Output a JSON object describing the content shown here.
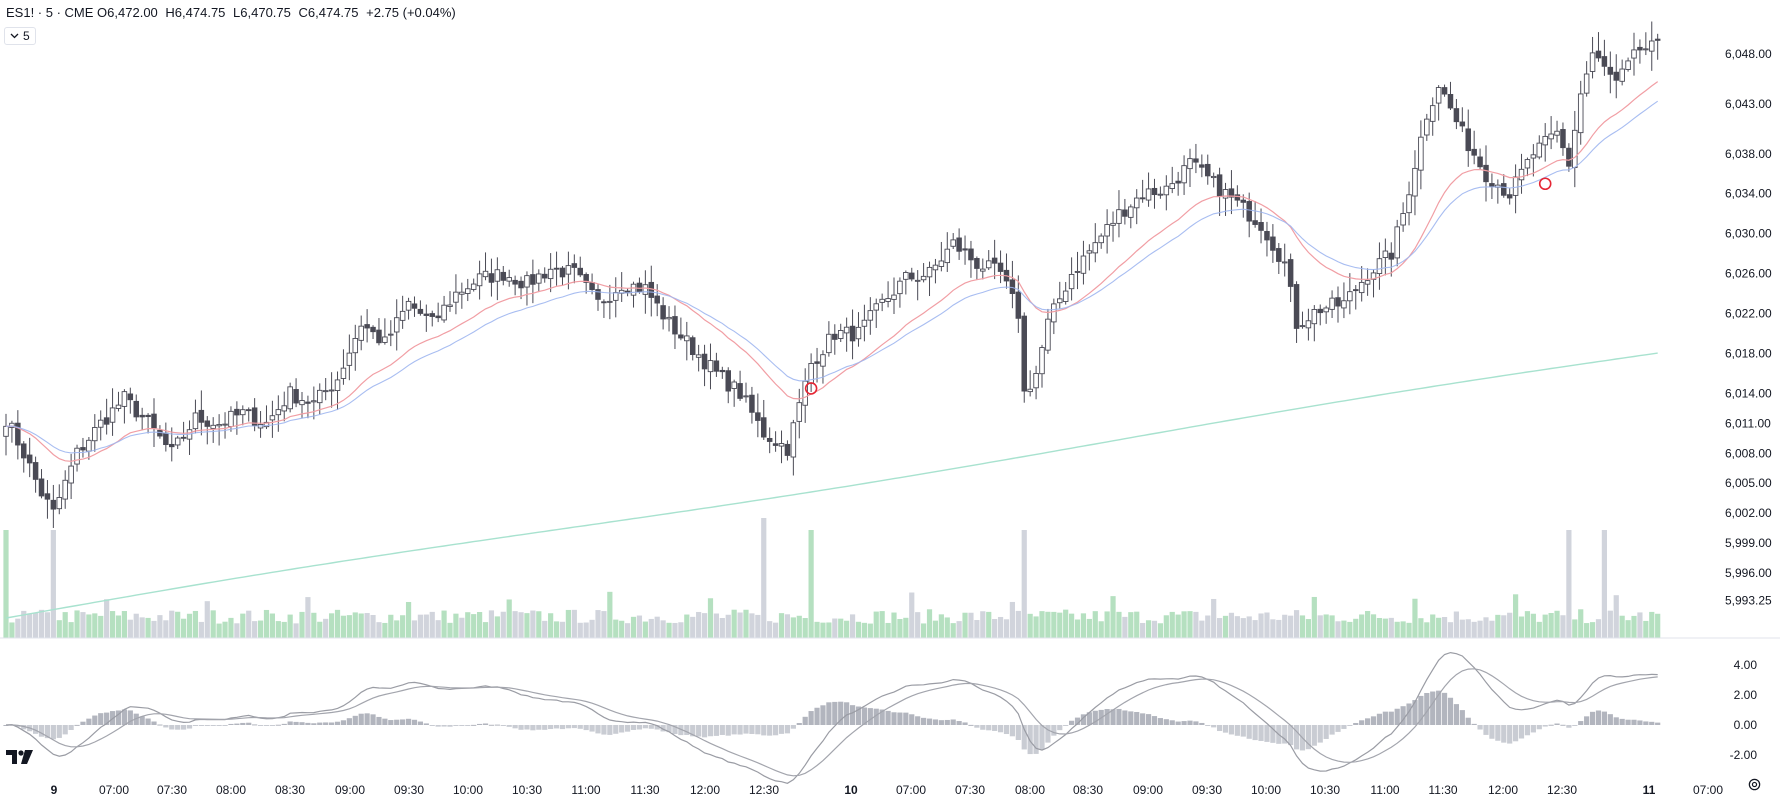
{
  "legend": {
    "symbol": "ES1! · 5 · CME",
    "o_label": "O",
    "o_value": "6,472.00",
    "h_label": "H",
    "h_value": "6,474.75",
    "l_label": "L",
    "l_value": "6,470.75",
    "c_label": "C",
    "c_value": "6,474.75",
    "change": "+2.75 (+0.04%)"
  },
  "interval_button": {
    "label": "5",
    "icon": "chevron-down-icon"
  },
  "colors": {
    "up_body": "#ffffff",
    "up_border": "#4a4a55",
    "down_body": "#4a4a55",
    "wick": "#4a4a55",
    "volume_up": "#b5e0c0",
    "volume_down": "#d1d4dc",
    "ema_red": "#f19ea4",
    "ema_blue": "#9fb6f0",
    "sma_long": "#a8e2cf",
    "signal_circle": "#e52634",
    "macd_line": "#9a9ca4",
    "macd_signal": "#a3a5ad"
  },
  "chart_data": {
    "type": "candlestick",
    "price_axis_labels": [
      "6,048.00",
      "6,043.00",
      "6,038.00",
      "6,034.00",
      "6,030.00",
      "6,026.00",
      "6,022.00",
      "6,018.00",
      "6,014.00",
      "6,011.00",
      "6,008.00",
      "6,005.00",
      "6,002.00",
      "5,999.00",
      "5,996.00",
      "5,993.25"
    ],
    "price_range": [
      5991.5,
      6050.0
    ],
    "time_axis_labels": [
      "9",
      "07:00",
      "07:30",
      "08:00",
      "08:30",
      "09:00",
      "09:30",
      "10:00",
      "10:30",
      "11:00",
      "11:30",
      "12:00",
      "12:30",
      "10",
      "07:00",
      "07:30",
      "08:00",
      "08:30",
      "09:00",
      "09:30",
      "10:00",
      "10:30",
      "11:00",
      "11:30",
      "12:00",
      "12:30",
      "11",
      "07:00"
    ],
    "macd_axis_labels": [
      "4.00",
      "2.00",
      "0.00",
      "-2.00"
    ],
    "macd_range": [
      -3.0,
      5.0
    ],
    "close_keypoints": [
      [
        0,
        6011.5
      ],
      [
        3,
        6008.0
      ],
      [
        6,
        6004.0
      ],
      [
        8,
        6002.0
      ],
      [
        12,
        6008.0
      ],
      [
        16,
        6011.0
      ],
      [
        20,
        6013.5
      ],
      [
        24,
        6011.0
      ],
      [
        28,
        6008.0
      ],
      [
        32,
        6011.5
      ],
      [
        36,
        6011.0
      ],
      [
        40,
        6012.0
      ],
      [
        44,
        6011.0
      ],
      [
        48,
        6014.0
      ],
      [
        52,
        6013.0
      ],
      [
        56,
        6015.5
      ],
      [
        60,
        6021.0
      ],
      [
        64,
        6019.0
      ],
      [
        68,
        6023.0
      ],
      [
        72,
        6021.0
      ],
      [
        76,
        6024.0
      ],
      [
        80,
        6025.5
      ],
      [
        84,
        6026.0
      ],
      [
        88,
        6025.0
      ],
      [
        92,
        6026.5
      ],
      [
        96,
        6026.0
      ],
      [
        100,
        6023.0
      ],
      [
        104,
        6025.0
      ],
      [
        108,
        6024.5
      ],
      [
        112,
        6021.0
      ],
      [
        116,
        6018.5
      ],
      [
        120,
        6016.0
      ],
      [
        124,
        6014.0
      ],
      [
        128,
        6010.0
      ],
      [
        132,
        6008.5
      ],
      [
        136,
        6017.0
      ],
      [
        140,
        6020.0
      ],
      [
        144,
        6020.0
      ],
      [
        148,
        6023.0
      ],
      [
        152,
        6025.5
      ],
      [
        156,
        6026.0
      ],
      [
        160,
        6029.0
      ],
      [
        164,
        6027.0
      ],
      [
        168,
        6026.0
      ],
      [
        171,
        6022.0
      ],
      [
        172,
        6014.0
      ],
      [
        174,
        6016.0
      ],
      [
        176,
        6021.0
      ],
      [
        180,
        6026.0
      ],
      [
        184,
        6029.0
      ],
      [
        188,
        6032.0
      ],
      [
        192,
        6034.0
      ],
      [
        196,
        6034.5
      ],
      [
        200,
        6037.0
      ],
      [
        204,
        6035.0
      ],
      [
        208,
        6033.0
      ],
      [
        212,
        6031.0
      ],
      [
        216,
        6027.0
      ],
      [
        218,
        6021.0
      ],
      [
        222,
        6022.5
      ],
      [
        226,
        6023.0
      ],
      [
        230,
        6026.0
      ],
      [
        234,
        6028.0
      ],
      [
        236,
        6032.0
      ],
      [
        240,
        6042.0
      ],
      [
        242,
        6045.0
      ],
      [
        246,
        6040.0
      ],
      [
        250,
        6036.0
      ],
      [
        254,
        6034.0
      ],
      [
        258,
        6038.0
      ],
      [
        262,
        6040.0
      ],
      [
        264,
        6037.0
      ],
      [
        266,
        6044.0
      ],
      [
        268,
        6048.0
      ],
      [
        272,
        6045.0
      ],
      [
        276,
        6048.5
      ],
      [
        279,
        6048.6
      ]
    ],
    "signal_markers": [
      {
        "index": 136,
        "price": 6014.5,
        "shape": "circle"
      },
      {
        "index": 260,
        "price": 6035.0,
        "shape": "circle"
      }
    ],
    "session_breaks": [
      8,
      136,
      264
    ],
    "indicators": [
      "EMA",
      "EMA",
      "SMA",
      "Volume",
      "MACD"
    ]
  }
}
